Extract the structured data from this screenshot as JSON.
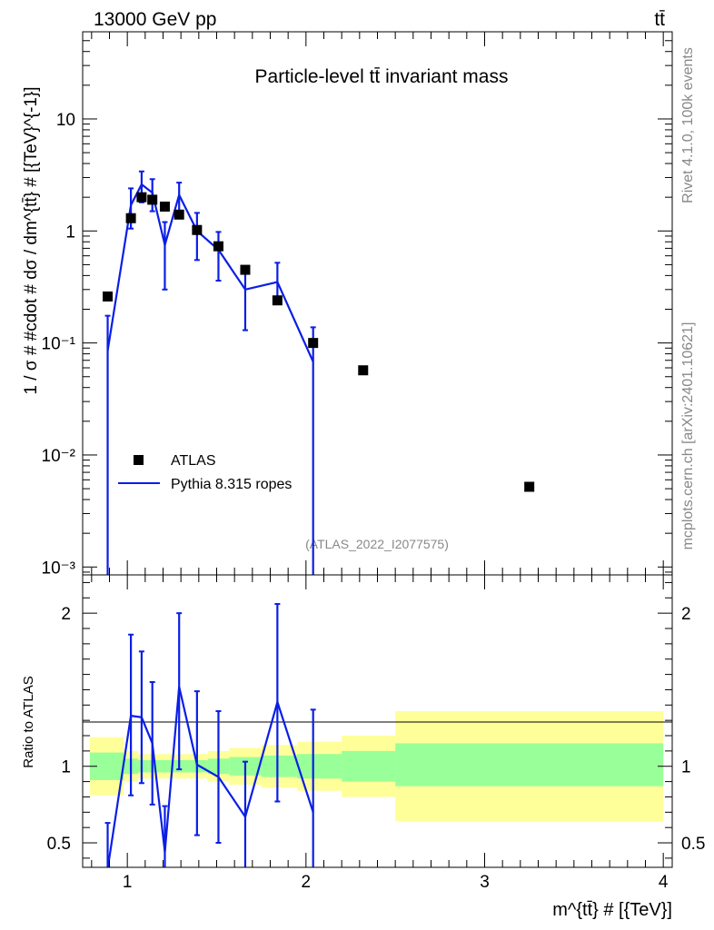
{
  "header": {
    "energy_label": "13000 GeV pp",
    "process_label": "tt̄"
  },
  "side_labels": {
    "rivet": "Rivet 4.1.0,  100k events",
    "mcplots": "mcplots.cern.ch [arXiv:2401.10621]"
  },
  "legend": {
    "atlas": "ATLAS",
    "pythia": "Pythia 8.315 ropes"
  },
  "colors": {
    "data": "#000000",
    "mc": "#0a1ee6",
    "band_inner": "#99ff99",
    "band_outer": "#ffff99"
  },
  "chart_data": [
    {
      "type": "scatter",
      "title": "Particle-level tt̄ invariant mass",
      "analysis_id": "(ATLAS_2022_I2077575)",
      "ylabel": "1 / σ # #cdot # dσ / dm^{tt̄} # [{TeV}^{-1}]",
      "xlabel": "m^{tt̄} # [{TeV}]",
      "yscale": "log",
      "xlim": [
        0.75,
        4.05
      ],
      "ylim": [
        0.00085,
        60
      ],
      "y_ticks": [
        {
          "value": 0.001,
          "label": "10⁻³"
        },
        {
          "value": 0.01,
          "label": "10⁻²"
        },
        {
          "value": 0.1,
          "label": "10⁻¹"
        },
        {
          "value": 1,
          "label": "1"
        },
        {
          "value": 10,
          "label": "10"
        }
      ],
      "series": [
        {
          "name": "ATLAS",
          "x": [
            0.89,
            1.02,
            1.08,
            1.14,
            1.21,
            1.29,
            1.39,
            1.51,
            1.66,
            1.84,
            2.04,
            2.32,
            3.25
          ],
          "values": [
            0.26,
            1.3,
            2.0,
            1.9,
            1.65,
            1.4,
            1.02,
            0.73,
            0.45,
            0.24,
            0.1,
            0.057,
            0.0052
          ]
        },
        {
          "name": "Pythia 8.315 ropes",
          "x": [
            0.89,
            1.02,
            1.08,
            1.14,
            1.21,
            1.29,
            1.39,
            1.51,
            1.66,
            1.84,
            2.04
          ],
          "values": [
            0.085,
            1.7,
            2.6,
            2.2,
            0.75,
            2.1,
            1.0,
            0.68,
            0.3,
            0.35,
            0.068
          ],
          "err_low": [
            0.085,
            0.65,
            0.8,
            0.7,
            0.45,
            0.7,
            0.45,
            0.32,
            0.17,
            0.09,
            0.068
          ],
          "err_high": [
            0.09,
            0.7,
            0.8,
            0.7,
            0.45,
            0.6,
            0.45,
            0.3,
            0.17,
            0.17,
            0.07
          ]
        }
      ]
    },
    {
      "type": "line",
      "ylabel": "Ratio to ATLAS",
      "xlabel": "m^{tt̄} # [{TeV}]",
      "xlim": [
        0.75,
        4.05
      ],
      "ylim": [
        0.34,
        2.25
      ],
      "x_ticks": [
        1,
        2,
        3,
        4
      ],
      "y_ticks": [
        0.5,
        1,
        2
      ],
      "bands": {
        "edges": [
          0.79,
          0.98,
          1.06,
          1.12,
          1.17,
          1.25,
          1.34,
          1.45,
          1.57,
          1.75,
          1.95,
          2.2,
          2.5,
          4.0
        ],
        "inner_low": [
          0.91,
          0.95,
          0.96,
          0.96,
          0.96,
          0.96,
          0.96,
          0.95,
          0.94,
          0.93,
          0.92,
          0.9,
          0.87
        ],
        "inner_high": [
          1.09,
          1.05,
          1.04,
          1.04,
          1.04,
          1.04,
          1.04,
          1.05,
          1.06,
          1.07,
          1.08,
          1.1,
          1.15
        ],
        "outer_low": [
          0.81,
          0.9,
          0.92,
          0.92,
          0.92,
          0.92,
          0.92,
          0.9,
          0.88,
          0.86,
          0.84,
          0.8,
          0.64
        ],
        "outer_high": [
          1.19,
          1.1,
          1.08,
          1.08,
          1.08,
          1.08,
          1.08,
          1.1,
          1.12,
          1.14,
          1.16,
          1.2,
          1.36
        ]
      },
      "series": [
        {
          "name": "Pythia 8.315 ropes",
          "x": [
            0.89,
            1.02,
            1.08,
            1.14,
            1.21,
            1.29,
            1.39,
            1.51,
            1.66,
            1.84,
            2.04
          ],
          "values": [
            0.33,
            1.33,
            1.32,
            1.15,
            0.44,
            1.52,
            1.01,
            0.93,
            0.67,
            1.42,
            0.7
          ],
          "err_low": [
            0.3,
            0.52,
            0.43,
            0.4,
            0.3,
            0.54,
            0.46,
            0.43,
            0.36,
            0.65,
            0.66
          ],
          "err_high": [
            0.3,
            0.53,
            0.43,
            0.4,
            0.3,
            0.48,
            0.48,
            0.43,
            0.36,
            0.64,
            0.67
          ]
        }
      ]
    }
  ]
}
